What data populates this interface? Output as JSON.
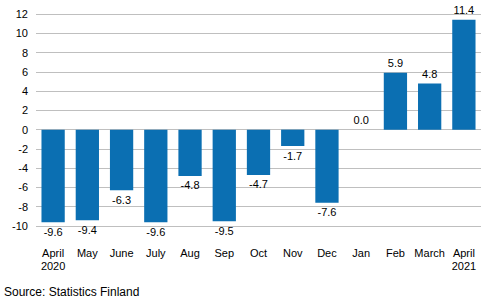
{
  "chart_data": {
    "type": "bar",
    "categories": [
      "April\n2020",
      "May",
      "June",
      "July",
      "Aug",
      "Sep",
      "Oct",
      "Nov",
      "Dec",
      "Jan",
      "Feb",
      "March",
      "April\n2021"
    ],
    "values": [
      -9.6,
      -9.4,
      -6.3,
      -9.6,
      -4.8,
      -9.5,
      -4.7,
      -1.7,
      -7.6,
      0.0,
      5.9,
      4.8,
      11.4
    ],
    "value_labels": [
      "-9.6",
      "-9.4",
      "-6.3",
      "-9.6",
      "-4.8",
      "-9.5",
      "-4.7",
      "-1.7",
      "-7.6",
      "0.0",
      "5.9",
      "4.8",
      "11.4"
    ],
    "color": "#0b6fb2",
    "ylim": [
      -10,
      12
    ],
    "yticks": [
      -10,
      -8,
      -6,
      -4,
      -2,
      0,
      2,
      4,
      6,
      8,
      10,
      12
    ],
    "grid": true,
    "data_labels": true,
    "source": "Source: Statistics Finland"
  }
}
